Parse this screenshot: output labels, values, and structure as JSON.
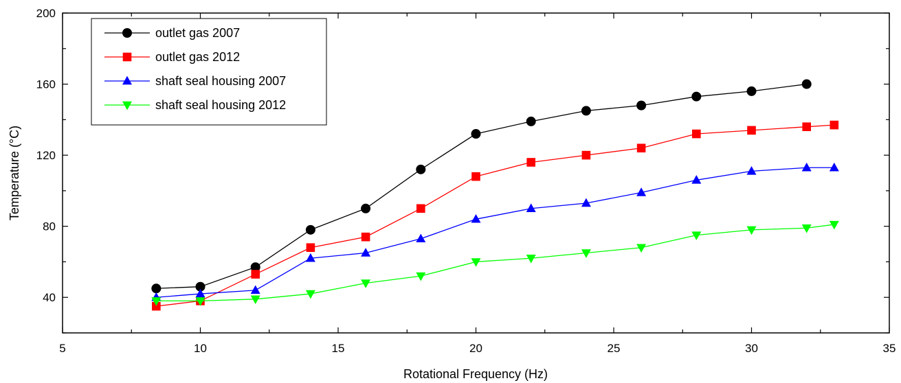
{
  "chart_data": {
    "type": "line",
    "xlabel": "Rotational Frequency (Hz)",
    "ylabel": "Temperature (°C)",
    "xlim": [
      5,
      35
    ],
    "ylim": [
      20,
      200
    ],
    "x_ticks": [
      5,
      10,
      15,
      20,
      25,
      30,
      35
    ],
    "y_ticks": [
      40,
      80,
      120,
      160,
      200
    ],
    "grid": false,
    "legend_position": "top-left",
    "series": [
      {
        "name": "outlet gas 2007",
        "color": "#000000",
        "marker": "circle",
        "x": [
          8.4,
          10,
          12,
          14,
          16,
          18,
          20,
          22,
          24,
          26,
          28,
          30,
          32
        ],
        "y": [
          45,
          46,
          57,
          78,
          90,
          112,
          132,
          139,
          145,
          148,
          153,
          156,
          160
        ]
      },
      {
        "name": "outlet gas 2012",
        "color": "#ff0000",
        "marker": "square",
        "x": [
          8.4,
          10,
          12,
          14,
          16,
          18,
          20,
          22,
          24,
          26,
          28,
          30,
          32,
          33
        ],
        "y": [
          35,
          38,
          53,
          68,
          74,
          90,
          108,
          116,
          120,
          124,
          132,
          134,
          136,
          137
        ]
      },
      {
        "name": "shaft seal housing 2007",
        "color": "#0000ff",
        "marker": "triangle-up",
        "x": [
          8.4,
          10,
          12,
          14,
          16,
          18,
          20,
          22,
          24,
          26,
          28,
          30,
          32,
          33
        ],
        "y": [
          40,
          42,
          44,
          62,
          65,
          73,
          84,
          90,
          93,
          99,
          106,
          111,
          113,
          113
        ]
      },
      {
        "name": "shaft seal housing 2012",
        "color": "#00ff00",
        "marker": "triangle-down",
        "x": [
          8.4,
          10,
          12,
          14,
          16,
          18,
          20,
          22,
          24,
          26,
          28,
          30,
          32,
          33
        ],
        "y": [
          38,
          38,
          39,
          42,
          48,
          52,
          60,
          62,
          65,
          68,
          75,
          78,
          79,
          81
        ]
      }
    ]
  }
}
